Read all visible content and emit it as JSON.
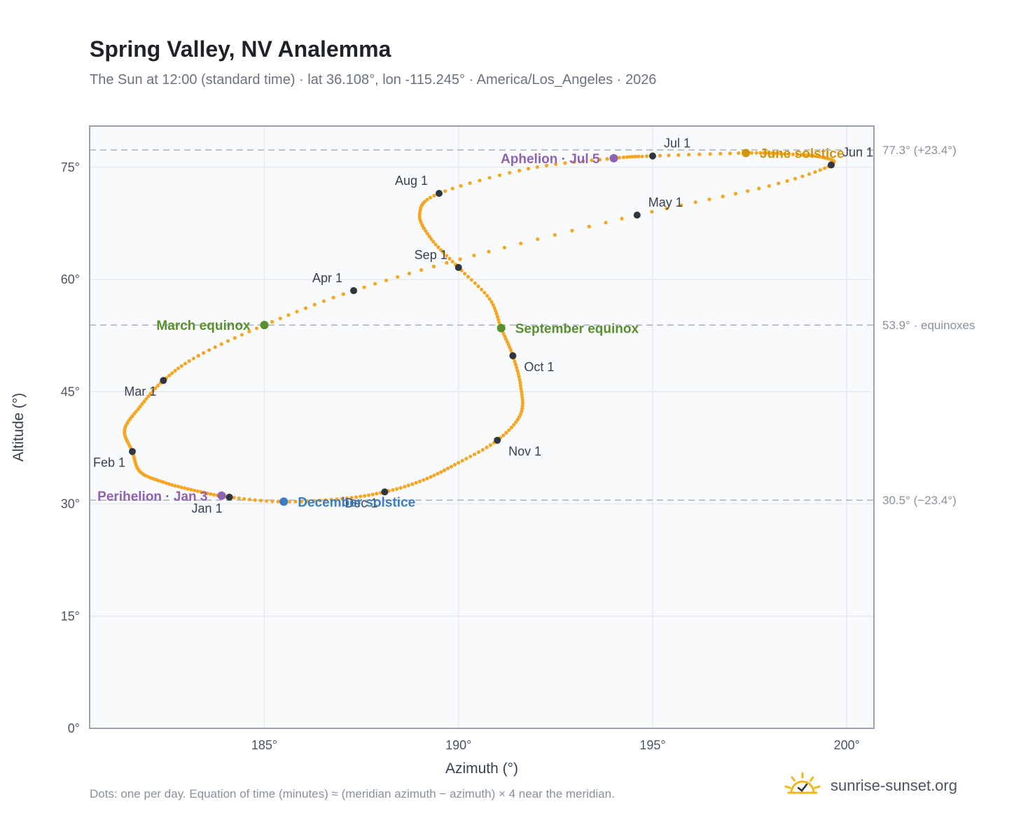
{
  "title": "Spring Valley, NV Analemma",
  "subtitle": "The Sun at 12:00 (standard time) · lat 36.108°, lon -115.245° · America/Los_Angeles · 2026",
  "footnote": "Dots: one per day. Equation of time (minutes) ≈ (meridian azimuth − azimuth) × 4 near the meridian.",
  "brand": {
    "name": "sunrise-sunset.org",
    "icon": "sun-check-icon"
  },
  "colors": {
    "curve": "#f5a623",
    "month_dot": "#2f3640",
    "equinox": "#5a8f2e",
    "june_solstice": "#d4950a",
    "december_solstice": "#3b7dc4",
    "apsis": "#8e62b0",
    "gridline": "#e6eaef",
    "plot_bg": "#f8fafc",
    "axis_border": "#98a2b3",
    "ref_line": "#b0b7c3"
  },
  "chart_data": {
    "type": "scatter",
    "title": "Spring Valley, NV Analemma",
    "xlabel": "Azimuth (°)",
    "ylabel": "Altitude (°)",
    "xlim": [
      180.5,
      200.7
    ],
    "ylim": [
      0,
      80.5
    ],
    "x_ticks": [
      {
        "value": 185,
        "label": "185°"
      },
      {
        "value": 190,
        "label": "190°"
      },
      {
        "value": 195,
        "label": "195°"
      },
      {
        "value": 200,
        "label": "200°"
      }
    ],
    "y_ticks": [
      {
        "value": 0,
        "label": "0°"
      },
      {
        "value": 15,
        "label": "15°"
      },
      {
        "value": 30,
        "label": "30°"
      },
      {
        "value": 45,
        "label": "45°"
      },
      {
        "value": 60,
        "label": "60°"
      },
      {
        "value": 75,
        "label": "75°"
      }
    ],
    "grid": true,
    "reference_lines": [
      {
        "y": 77.3,
        "label": "77.3° (+23.4°)"
      },
      {
        "y": 53.9,
        "label": "53.9° · equinoxes"
      },
      {
        "y": 30.5,
        "label": "30.5° (−23.4°)"
      }
    ],
    "analemma_path": [
      {
        "date": "Jan 1",
        "az": 184.1,
        "alt": 30.9
      },
      {
        "date": "Jan 8",
        "az": 183.2,
        "alt": 31.8
      },
      {
        "date": "Jan 15",
        "az": 182.4,
        "alt": 32.9
      },
      {
        "date": "Jan 22",
        "az": 181.8,
        "alt": 34.3
      },
      {
        "date": "Feb 1",
        "az": 181.6,
        "alt": 37.0
      },
      {
        "date": "Feb 11",
        "az": 181.4,
        "alt": 39.9
      },
      {
        "date": "Feb 20",
        "az": 181.8,
        "alt": 43.0
      },
      {
        "date": "Mar 1",
        "az": 182.4,
        "alt": 46.5
      },
      {
        "date": "Mar 10",
        "az": 183.3,
        "alt": 49.8
      },
      {
        "date": "Mar 20",
        "az": 185.0,
        "alt": 53.9
      },
      {
        "date": "Apr 1",
        "az": 187.3,
        "alt": 58.5
      },
      {
        "date": "Apr 15",
        "az": 190.4,
        "alt": 63.2
      },
      {
        "date": "May 1",
        "az": 194.6,
        "alt": 68.6
      },
      {
        "date": "May 16",
        "az": 198.0,
        "alt": 72.5
      },
      {
        "date": "Jun 1",
        "az": 199.6,
        "alt": 75.3
      },
      {
        "date": "Jun 8",
        "az": 199.3,
        "alt": 76.4
      },
      {
        "date": "Jun 14",
        "az": 198.3,
        "alt": 76.8
      },
      {
        "date": "Jun 21",
        "az": 197.4,
        "alt": 76.9
      },
      {
        "date": "Jul 1",
        "az": 195.0,
        "alt": 76.5
      },
      {
        "date": "Jul 5",
        "az": 194.0,
        "alt": 76.2
      },
      {
        "date": "Jul 16",
        "az": 191.8,
        "alt": 74.8
      },
      {
        "date": "Aug 1",
        "az": 189.5,
        "alt": 71.5
      },
      {
        "date": "Aug 11",
        "az": 189.0,
        "alt": 68.8
      },
      {
        "date": "Aug 21",
        "az": 189.3,
        "alt": 65.4
      },
      {
        "date": "Sep 1",
        "az": 190.0,
        "alt": 61.6
      },
      {
        "date": "Sep 12",
        "az": 190.8,
        "alt": 57.4
      },
      {
        "date": "Sep 22",
        "az": 191.1,
        "alt": 53.5
      },
      {
        "date": "Oct 1",
        "az": 191.4,
        "alt": 49.8
      },
      {
        "date": "Oct 12",
        "az": 191.6,
        "alt": 45.8
      },
      {
        "date": "Oct 22",
        "az": 191.6,
        "alt": 42.0
      },
      {
        "date": "Nov 1",
        "az": 191.0,
        "alt": 38.5
      },
      {
        "date": "Nov 11",
        "az": 190.0,
        "alt": 35.5
      },
      {
        "date": "Nov 21",
        "az": 189.1,
        "alt": 33.2
      },
      {
        "date": "Dec 1",
        "az": 188.1,
        "alt": 31.6
      },
      {
        "date": "Dec 11",
        "az": 187.0,
        "alt": 30.7
      },
      {
        "date": "Dec 21",
        "az": 185.5,
        "alt": 30.3
      },
      {
        "date": "Dec 31",
        "az": 184.1,
        "alt": 30.9
      }
    ],
    "month_markers": [
      {
        "label": "Jan 1",
        "az": 184.1,
        "alt": 30.9,
        "anchor": "below-left"
      },
      {
        "label": "Feb 1",
        "az": 181.6,
        "alt": 37.0,
        "anchor": "below-left"
      },
      {
        "label": "Mar 1",
        "az": 182.4,
        "alt": 46.5,
        "anchor": "below-left"
      },
      {
        "label": "Apr 1",
        "az": 187.3,
        "alt": 58.5,
        "anchor": "above-left"
      },
      {
        "label": "May 1",
        "az": 194.6,
        "alt": 68.6,
        "anchor": "above-right"
      },
      {
        "label": "Jun 1",
        "az": 199.6,
        "alt": 75.3,
        "anchor": "above-right"
      },
      {
        "label": "Jul 1",
        "az": 195.0,
        "alt": 76.5,
        "anchor": "above-right"
      },
      {
        "label": "Aug 1",
        "az": 189.5,
        "alt": 71.5,
        "anchor": "above-left"
      },
      {
        "label": "Sep 1",
        "az": 190.0,
        "alt": 61.6,
        "anchor": "above-left"
      },
      {
        "label": "Oct 1",
        "az": 191.4,
        "alt": 49.8,
        "anchor": "below-right"
      },
      {
        "label": "Nov 1",
        "az": 191.0,
        "alt": 38.5,
        "anchor": "below-right"
      },
      {
        "label": "Dec 1",
        "az": 188.1,
        "alt": 31.6,
        "anchor": "below-left"
      }
    ],
    "events": [
      {
        "label": "March equinox",
        "az": 185.0,
        "alt": 53.9,
        "kind": "equinox",
        "anchor": "left"
      },
      {
        "label": "June solstice",
        "az": 197.4,
        "alt": 76.9,
        "kind": "june_solstice",
        "anchor": "right"
      },
      {
        "label": "September equinox",
        "az": 191.1,
        "alt": 53.5,
        "kind": "equinox",
        "anchor": "right"
      },
      {
        "label": "December solstice",
        "az": 185.5,
        "alt": 30.3,
        "kind": "december_solstice",
        "anchor": "right"
      },
      {
        "label": "Perihelion · Jan 3",
        "az": 183.9,
        "alt": 31.1,
        "kind": "apsis",
        "anchor": "left"
      },
      {
        "label": "Aphelion · Jul 5",
        "az": 194.0,
        "alt": 76.2,
        "kind": "apsis",
        "anchor": "left"
      }
    ]
  }
}
